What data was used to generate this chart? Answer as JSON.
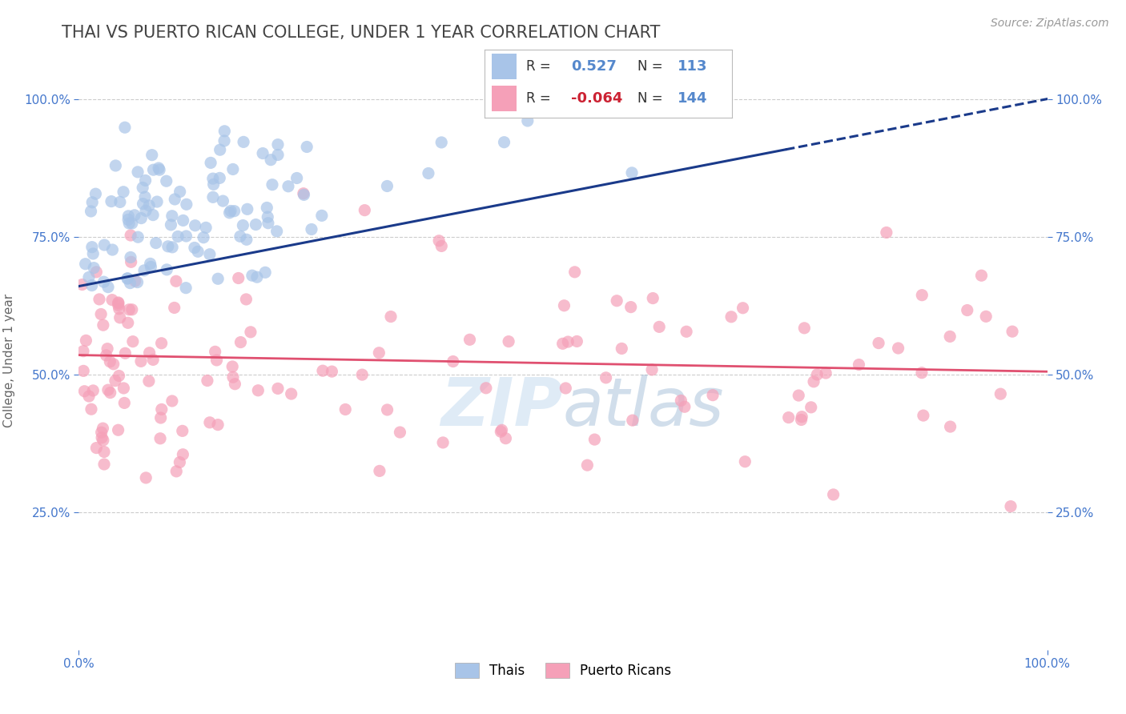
{
  "title": "THAI VS PUERTO RICAN COLLEGE, UNDER 1 YEAR CORRELATION CHART",
  "source_text": "Source: ZipAtlas.com",
  "ylabel": "College, Under 1 year",
  "xlim": [
    0.0,
    1.0
  ],
  "ylim": [
    0.0,
    1.05
  ],
  "ytick_positions": [
    0.25,
    0.5,
    0.75,
    1.0
  ],
  "thai_R": 0.527,
  "thai_N": 113,
  "thai_color": "#a8c4e8",
  "thai_line_color": "#1a3a8a",
  "thai_line_start_y": 0.66,
  "thai_line_end_y": 1.0,
  "puerto_rican_R": -0.064,
  "puerto_rican_N": 144,
  "puerto_rican_color": "#f5a0b8",
  "puerto_rican_line_color": "#e05070",
  "puerto_rican_line_start_y": 0.535,
  "puerto_rican_line_end_y": 0.505,
  "background_color": "#ffffff",
  "grid_color": "#cccccc",
  "title_color": "#444444",
  "title_fontsize": 15,
  "axis_label_fontsize": 11,
  "tick_label_color": "#4477cc",
  "source_color": "#999999",
  "source_fontsize": 10,
  "legend_r1_color": "#5588cc",
  "legend_r2_color": "#cc2233",
  "watermark_color": "#c0d8ee",
  "watermark_alpha": 0.5
}
